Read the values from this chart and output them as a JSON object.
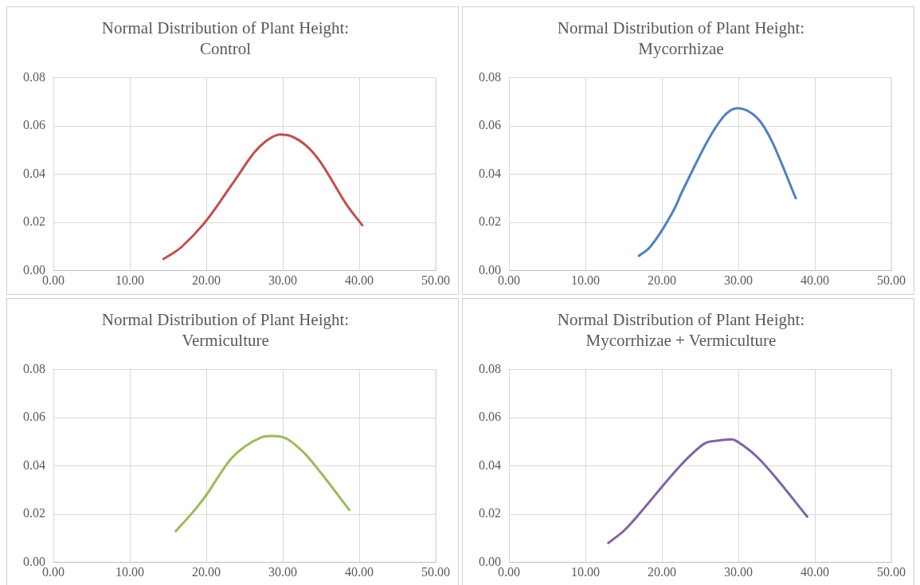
{
  "chart_data": [
    {
      "type": "line",
      "title": "Normal Distribution of Plant Height:\nControl",
      "series": [
        {
          "color": "#c0504d",
          "x": [
            14.4,
            15.8,
            16.8,
            19.9,
            23.9,
            26.3,
            28.1,
            29.6,
            31.0,
            33.2,
            34.8,
            38.5,
            40.4
          ],
          "values": [
            0.0049,
            0.0076,
            0.01,
            0.0204,
            0.0383,
            0.0491,
            0.0544,
            0.0565,
            0.0559,
            0.0515,
            0.0456,
            0.0267,
            0.0189
          ]
        }
      ],
      "xlim": [
        0,
        50
      ],
      "xticks": [
        {
          "value": 0,
          "label": "0.00"
        },
        {
          "value": 10,
          "label": "10.00"
        },
        {
          "value": 20,
          "label": "20.00"
        },
        {
          "value": 30,
          "label": "30.00"
        },
        {
          "value": 40,
          "label": "40.00"
        },
        {
          "value": 50,
          "label": "50.00"
        }
      ],
      "ylim": [
        0,
        0.08
      ],
      "yticks": [
        {
          "value": 0,
          "label": "0.00"
        },
        {
          "value": 0.02,
          "label": "0.02"
        },
        {
          "value": 0.04,
          "label": "0.04"
        },
        {
          "value": 0.06,
          "label": "0.06"
        },
        {
          "value": 0.08,
          "label": "0.08"
        }
      ],
      "grid": true,
      "marker": "none",
      "line_style": "solid"
    },
    {
      "type": "line",
      "title": "Normal Distribution of Plant Height:\nMycorrhizae",
      "series": [
        {
          "color": "#4f81bd",
          "x": [
            17.0,
            18.4,
            21.6,
            22.7,
            28.0,
            29.9,
            31.2,
            32.8,
            34.3,
            37.5
          ],
          "values": [
            0.0062,
            0.0097,
            0.0255,
            0.0332,
            0.0637,
            0.0674,
            0.0663,
            0.0621,
            0.0542,
            0.0301
          ]
        }
      ],
      "xlim": [
        0,
        50
      ],
      "xticks": [
        {
          "value": 0,
          "label": "0.00"
        },
        {
          "value": 10,
          "label": "10.00"
        },
        {
          "value": 20,
          "label": "20.00"
        },
        {
          "value": 30,
          "label": "30.00"
        },
        {
          "value": 40,
          "label": "40.00"
        },
        {
          "value": 50,
          "label": "50.00"
        }
      ],
      "ylim": [
        0,
        0.08
      ],
      "yticks": [
        {
          "value": 0,
          "label": "0.00"
        },
        {
          "value": 0.02,
          "label": "0.02"
        },
        {
          "value": 0.04,
          "label": "0.04"
        },
        {
          "value": 0.06,
          "label": "0.06"
        },
        {
          "value": 0.08,
          "label": "0.08"
        }
      ],
      "grid": true,
      "marker": "none",
      "line_style": "solid"
    },
    {
      "type": "line",
      "title": "Normal Distribution of Plant Height:\nVermiculture",
      "series": [
        {
          "color": "#9bbb59",
          "x": [
            16.0,
            18.2,
            19.9,
            23.3,
            27.1,
            28.4,
            29.8,
            32.8,
            34.8,
            38.7
          ],
          "values": [
            0.013,
            0.0207,
            0.0275,
            0.0432,
            0.0517,
            0.0524,
            0.0521,
            0.0454,
            0.0379,
            0.0218
          ]
        }
      ],
      "xlim": [
        0,
        50
      ],
      "xticks": [
        {
          "value": 0,
          "label": "0.00"
        },
        {
          "value": 10,
          "label": "10.00"
        },
        {
          "value": 20,
          "label": "20.00"
        },
        {
          "value": 30,
          "label": "30.00"
        },
        {
          "value": 40,
          "label": "40.00"
        },
        {
          "value": 50,
          "label": "50.00"
        }
      ],
      "ylim": [
        0,
        0.08
      ],
      "yticks": [
        {
          "value": 0,
          "label": "0.00"
        },
        {
          "value": 0.02,
          "label": "0.02"
        },
        {
          "value": 0.04,
          "label": "0.04"
        },
        {
          "value": 0.06,
          "label": "0.06"
        },
        {
          "value": 0.08,
          "label": "0.08"
        }
      ],
      "grid": true,
      "marker": "none",
      "line_style": "solid"
    },
    {
      "type": "line",
      "title": "Normal Distribution of Plant Height:\nMycorrhizae + Vermiculture",
      "series": [
        {
          "color": "#8064a2",
          "x": [
            13.0,
            15.1,
            17.4,
            21.3,
            23.8,
            25.7,
            27.4,
            29.1,
            30.7,
            32.5,
            34.4,
            39.0
          ],
          "values": [
            0.0081,
            0.0134,
            0.0215,
            0.0362,
            0.0446,
            0.0495,
            0.0505,
            0.051,
            0.0483,
            0.0436,
            0.037,
            0.019
          ]
        }
      ],
      "xlim": [
        0,
        50
      ],
      "xticks": [
        {
          "value": 0,
          "label": "0.00"
        },
        {
          "value": 10,
          "label": "10.00"
        },
        {
          "value": 20,
          "label": "20.00"
        },
        {
          "value": 30,
          "label": "30.00"
        },
        {
          "value": 40,
          "label": "40.00"
        },
        {
          "value": 50,
          "label": "50.00"
        }
      ],
      "ylim": [
        0,
        0.08
      ],
      "yticks": [
        {
          "value": 0,
          "label": "0.00"
        },
        {
          "value": 0.02,
          "label": "0.02"
        },
        {
          "value": 0.04,
          "label": "0.04"
        },
        {
          "value": 0.06,
          "label": "0.06"
        },
        {
          "value": 0.08,
          "label": "0.08"
        }
      ],
      "grid": true,
      "marker": "none",
      "line_style": "solid"
    }
  ]
}
